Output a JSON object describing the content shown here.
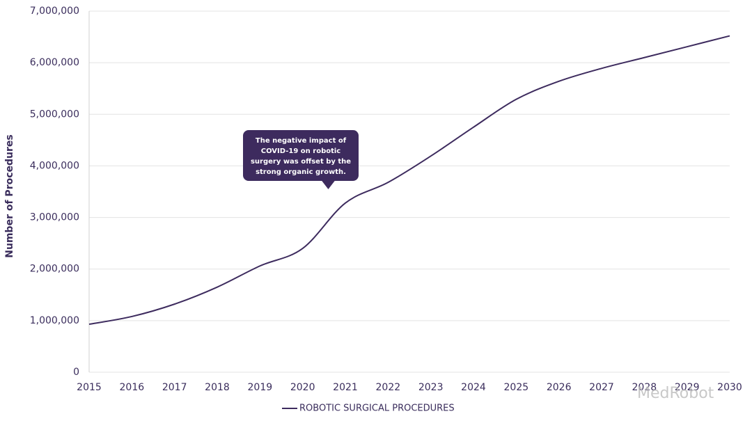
{
  "chart_data": {
    "type": "line",
    "y_label": "Number of Procedures",
    "x": [
      2015,
      2016,
      2017,
      2018,
      2019,
      2020,
      2021,
      2022,
      2023,
      2024,
      2025,
      2026,
      2027,
      2028,
      2029,
      2030
    ],
    "series": [
      {
        "name": "ROBOTIC SURGICAL PROCEDURES",
        "color": "#3d2b5e",
        "values": [
          930000,
          1080000,
          1320000,
          1650000,
          2060000,
          2400000,
          3280000,
          3680000,
          4190000,
          4750000,
          5290000,
          5640000,
          5890000,
          6100000,
          6310000,
          6520000
        ]
      }
    ],
    "xlim": [
      2015,
      2030
    ],
    "xticks": [
      2015,
      2016,
      2017,
      2018,
      2019,
      2020,
      2021,
      2022,
      2023,
      2024,
      2025,
      2026,
      2027,
      2028,
      2029,
      2030
    ],
    "ylim": [
      0,
      7000000
    ],
    "yticks": [
      0,
      {
        "value": 1000000,
        "label": "1,000,000"
      },
      {
        "value": 2000000,
        "label": "2,000,000"
      },
      {
        "value": 3000000,
        "label": "3,000,000"
      },
      {
        "value": 4000000,
        "label": "4,000,000"
      },
      {
        "value": 5000000,
        "label": "5,000,000"
      },
      {
        "value": 6000000,
        "label": "6,000,000"
      },
      {
        "value": 7000000,
        "label": "7,000,000"
      }
    ],
    "grid": true,
    "legend": "bottom",
    "annotation": {
      "x": 2020.6,
      "lines": [
        "The negative impact of",
        "COVID-19 on robotic",
        "surgery was offset by the",
        "strong organic growth."
      ]
    },
    "watermark": "MedRobot"
  }
}
